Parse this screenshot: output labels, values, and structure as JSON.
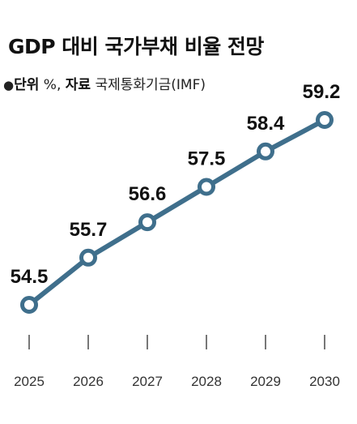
{
  "header": {
    "title": "GDP 대비 국가부채 비율 전망",
    "unit_key": "단위",
    "unit_value": "%",
    "source_key": "자료",
    "source_value": "국제통화기금(IMF)"
  },
  "chart_data": {
    "type": "line",
    "title": "GDP 대비 국가부채 비율 전망",
    "xlabel": "",
    "ylabel": "",
    "categories": [
      "2025",
      "2026",
      "2027",
      "2028",
      "2029",
      "2030"
    ],
    "series": [
      {
        "values": [
          54.5,
          55.7,
          56.6,
          57.5,
          58.4,
          59.2
        ]
      }
    ],
    "ylim": [
      54.5,
      59.2
    ],
    "grid": false,
    "line_color": "#3f6f8c",
    "marker_fill": "#ffffff"
  }
}
